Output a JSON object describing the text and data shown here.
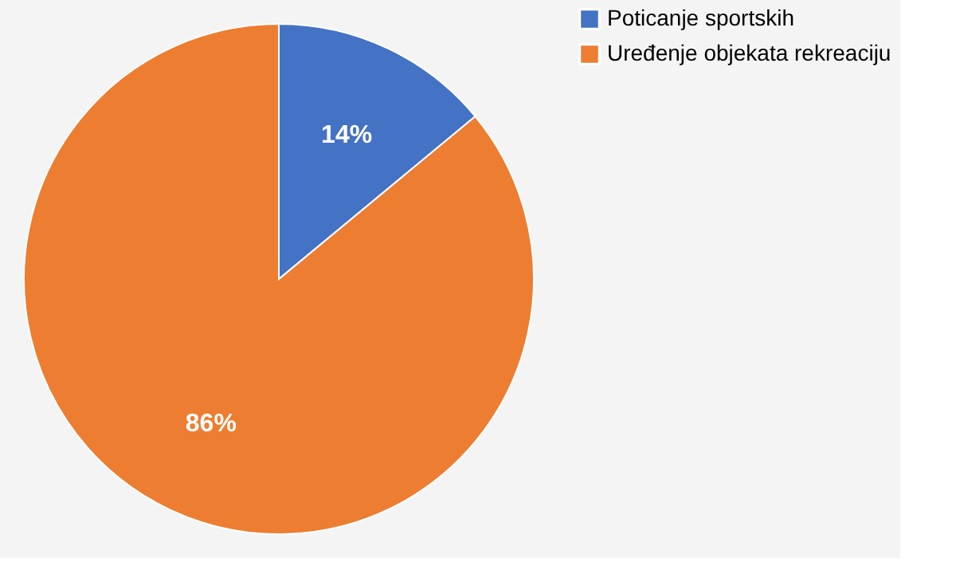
{
  "chart_data": {
    "type": "pie",
    "categories": [
      "Poticanje sportskih",
      "Uređenje objekata rekreaciju"
    ],
    "values": [
      14,
      86
    ],
    "colors": [
      "#4472c4",
      "#ed7d31"
    ],
    "value_labels": [
      "14%",
      "86%"
    ],
    "legend": "right"
  }
}
